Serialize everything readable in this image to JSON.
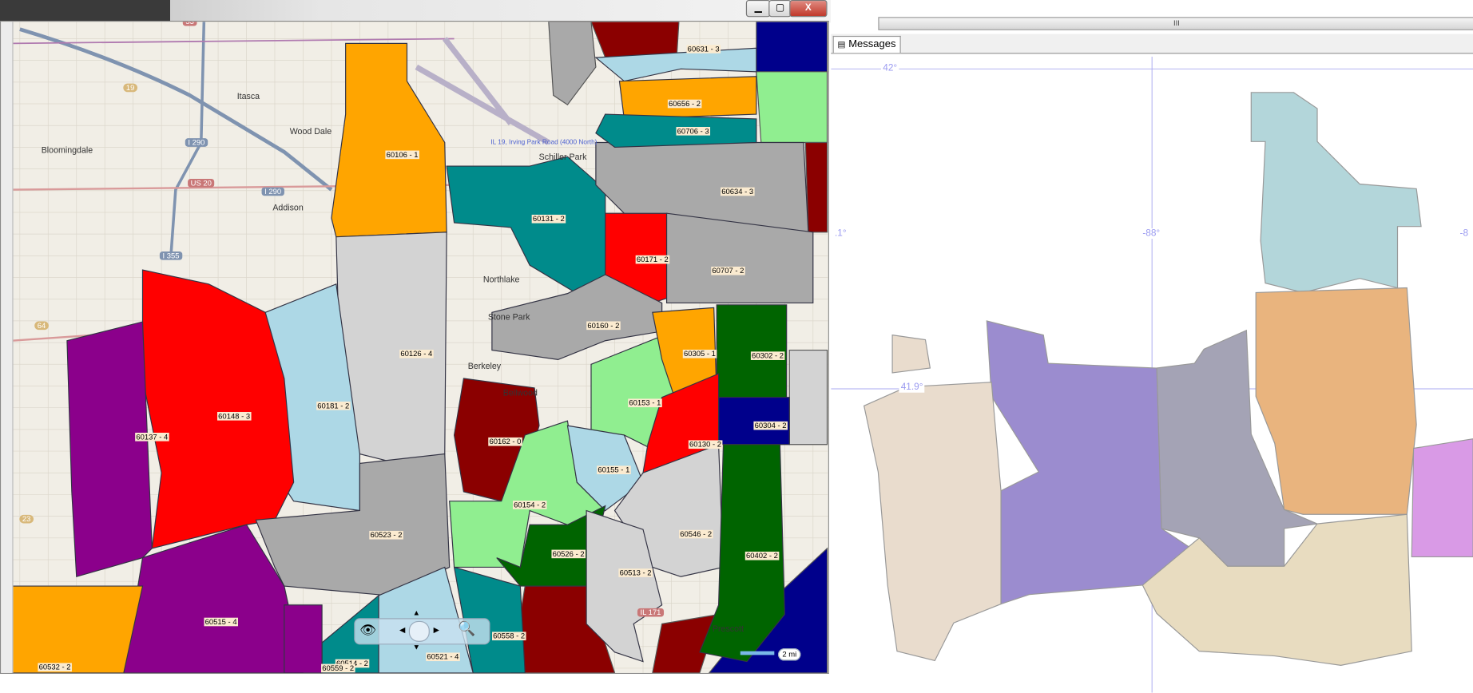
{
  "map_window": {
    "controls": {
      "minimize": "▁",
      "maximize": "▢",
      "close": "X"
    },
    "zip_regions": [
      {
        "label": "60106 - 1",
        "color": "#FFA500"
      },
      {
        "label": "60131 - 2",
        "color": "#008B8B"
      },
      {
        "label": "60171 - 2",
        "color": "#FF0000"
      },
      {
        "label": "60634 - 3",
        "color": "#A9A9A9"
      },
      {
        "label": "60707 - 2",
        "color": "#A9A9A9"
      },
      {
        "label": "60160 - 2",
        "color": "#A9A9A9"
      },
      {
        "label": "60126 - 4",
        "color": "#D3D3D3"
      },
      {
        "label": "60181 - 2",
        "color": "#ADD8E6"
      },
      {
        "label": "60148 - 3",
        "color": "#FF0000"
      },
      {
        "label": "60137 - 4",
        "color": "#8B008B"
      },
      {
        "label": "60523 - 2",
        "color": "#A9A9A9"
      },
      {
        "label": "60515 - 4",
        "color": "#8B008B"
      },
      {
        "label": "60532 - 2",
        "color": "#FFA500"
      },
      {
        "label": "60162 - 0",
        "color": "#8B0000"
      },
      {
        "label": "60154 - 2",
        "color": "#90EE90"
      },
      {
        "label": "60153 - 1",
        "color": "#90EE90"
      },
      {
        "label": "60155 - 1",
        "color": "#ADD8E6"
      },
      {
        "label": "60305 - 1",
        "color": "#FFA500"
      },
      {
        "label": "60302 - 2",
        "color": "#006400"
      },
      {
        "label": "60304 - 2",
        "color": "#00008B"
      },
      {
        "label": "60130 - 2",
        "color": "#FF0000"
      },
      {
        "label": "60546 - 2",
        "color": "#D3D3D3"
      },
      {
        "label": "60402 - 2",
        "color": "#006400"
      },
      {
        "label": "60526 - 2",
        "color": "#006400"
      },
      {
        "label": "60513 - 2",
        "color": "#D3D3D3"
      },
      {
        "label": "60558 - 2",
        "color": "#008B8B"
      },
      {
        "label": "60521 - 4",
        "color": "#ADD8E6"
      },
      {
        "label": "60514 - 2",
        "color": "#008B8B"
      },
      {
        "label": "60559 - 2",
        "color": "#8B008B"
      },
      {
        "label": "60631 - 3",
        "color": "#ADD8E6"
      },
      {
        "label": "60656 - 2",
        "color": "#FFA500"
      },
      {
        "label": "60706 - 3",
        "color": "#008B8B"
      }
    ],
    "towns": [
      "Itasca",
      "Wood Dale",
      "Bloomingdale",
      "Addison",
      "Northlake",
      "Stone Park",
      "Berkeley",
      "Bellwood",
      "Schiller Park",
      "Prescott"
    ],
    "roads": [
      "I 290",
      "US 20",
      "I 290",
      "I 355",
      "19",
      "53",
      "64",
      "23",
      "IL 171"
    ],
    "road_note": "IL 19, Irving Park Road (4000 North)",
    "scale_label": "2 mi"
  },
  "right_panel": {
    "scroll_grip": "III",
    "tab_label": "Messages",
    "grid_labels": {
      "lat_top": "42°",
      "lat_mid": "41.9°",
      "lon_mid": "-88°",
      "lon_left": ".1°",
      "lon_right": "-8"
    },
    "shape_colors": [
      "#b3d6da",
      "#e9b47e",
      "#a4a3b5",
      "#9b8ccf",
      "#e9dccd",
      "#e8dcc0",
      "#d99ae6",
      "#e9dccd"
    ]
  }
}
